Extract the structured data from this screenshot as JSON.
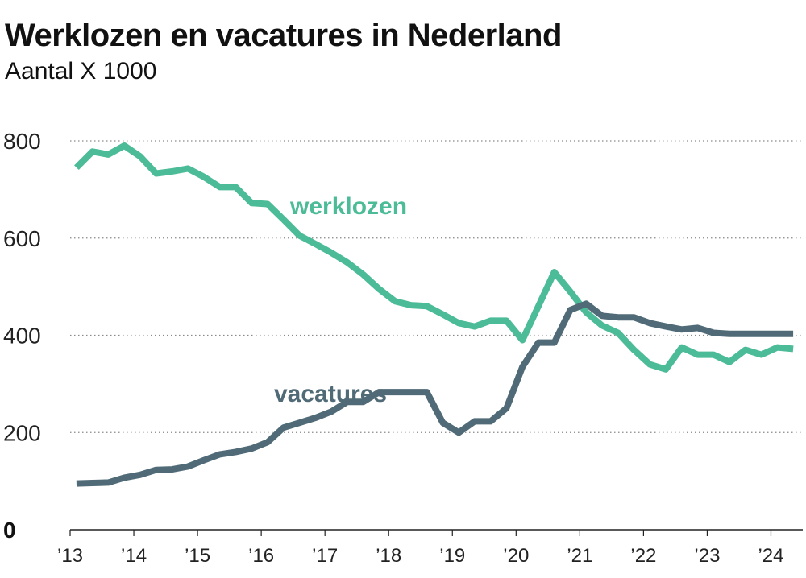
{
  "colors": {
    "werklozen": "#4cbb97",
    "vacatures": "#506b77",
    "grid": "#8a8a8a"
  },
  "chart_data": {
    "type": "line",
    "title": "Werklozen en vacatures in Nederland",
    "subtitle": "Aantal X 1000",
    "ylim": [
      0,
      800
    ],
    "yticks": [
      0,
      200,
      400,
      600,
      800
    ],
    "xlim": [
      2013,
      2024.5
    ],
    "xtick_values": [
      2013,
      2014,
      2015,
      2016,
      2017,
      2018,
      2019,
      2020,
      2021,
      2022,
      2023,
      2024
    ],
    "xtick_labels": [
      "’13",
      "’14",
      "’15",
      "’16",
      "’17",
      "’18",
      "’19",
      "’20",
      "’21",
      "’22",
      "’23",
      "’24"
    ],
    "grid": "horizontal dotted",
    "series": [
      {
        "name": "werklozen",
        "x": [
          2013.1,
          2013.35,
          2013.6,
          2013.85,
          2014.1,
          2014.35,
          2014.6,
          2014.85,
          2015.1,
          2015.35,
          2015.6,
          2015.85,
          2016.1,
          2016.35,
          2016.6,
          2016.85,
          2017.1,
          2017.35,
          2017.6,
          2017.85,
          2018.1,
          2018.35,
          2018.6,
          2018.85,
          2019.1,
          2019.35,
          2019.6,
          2019.85,
          2020.1,
          2020.35,
          2020.6,
          2020.85,
          2021.1,
          2021.35,
          2021.6,
          2021.85,
          2022.1,
          2022.35,
          2022.6,
          2022.85,
          2023.1,
          2023.35,
          2023.6,
          2023.85,
          2024.1,
          2024.35
        ],
        "values": [
          745,
          778,
          772,
          790,
          768,
          733,
          737,
          743,
          726,
          705,
          705,
          672,
          670,
          638,
          605,
          588,
          570,
          550,
          525,
          495,
          470,
          462,
          460,
          443,
          425,
          418,
          430,
          430,
          390,
          460,
          530,
          490,
          447,
          420,
          405,
          370,
          340,
          330,
          375,
          360,
          360,
          345,
          370,
          360,
          375,
          372
        ]
      },
      {
        "name": "vacatures",
        "x": [
          2013.1,
          2013.35,
          2013.6,
          2013.85,
          2014.1,
          2014.35,
          2014.6,
          2014.85,
          2015.1,
          2015.35,
          2015.6,
          2015.85,
          2016.1,
          2016.35,
          2016.6,
          2016.85,
          2017.1,
          2017.35,
          2017.6,
          2017.85,
          2018.1,
          2018.35,
          2018.6,
          2018.85,
          2019.1,
          2019.35,
          2019.6,
          2019.85,
          2020.1,
          2020.35,
          2020.6,
          2020.85,
          2021.1,
          2021.35,
          2021.6,
          2021.85,
          2022.1,
          2022.35,
          2022.6,
          2022.85,
          2023.1,
          2023.35,
          2023.6,
          2023.85,
          2024.1,
          2024.35
        ],
        "values": [
          95,
          96,
          97,
          107,
          113,
          123,
          124,
          130,
          143,
          155,
          160,
          167,
          180,
          210,
          220,
          230,
          243,
          263,
          263,
          283,
          283,
          283,
          283,
          220,
          200,
          223,
          223,
          250,
          335,
          385,
          385,
          452,
          465,
          440,
          437,
          437,
          425,
          418,
          412,
          415,
          405,
          403,
          403,
          403,
          403,
          403
        ]
      }
    ],
    "annotations": [
      {
        "text": "werklozen",
        "series": "werklozen"
      },
      {
        "text": "vacatures",
        "series": "vacatures"
      }
    ]
  }
}
